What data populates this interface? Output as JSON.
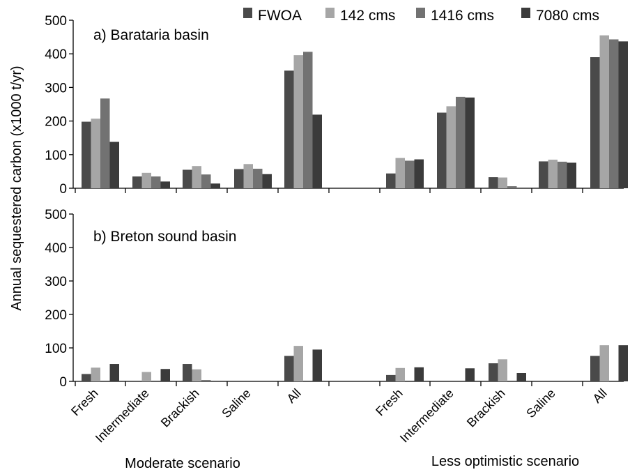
{
  "ylabel": "Annual sequestered carbon  (x1000 t/yr)",
  "groups": [
    "Moderate scenario",
    "Less optimistic scenario"
  ],
  "chart_data": {
    "type": "bar",
    "ylim": [
      0,
      500
    ],
    "yticks": [
      0,
      100,
      200,
      300,
      400,
      500
    ],
    "categories": [
      "Fresh",
      "Intermediate",
      "Brackish",
      "Saline",
      "All",
      "Fresh",
      "Intermediate",
      "Brackish",
      "Saline",
      "All"
    ],
    "legend": [
      {
        "name": "FWOA",
        "color": "#4a4a4a"
      },
      {
        "name": "142 cms",
        "color": "#a6a6a6"
      },
      {
        "name": "1416 cms",
        "color": "#727272"
      },
      {
        "name": "7080 cms",
        "color": "#3b3b3b"
      }
    ],
    "panels": [
      {
        "title": "a) Barataria basin",
        "series": [
          {
            "name": "FWOA",
            "values": [
              198,
              35,
              55,
              57,
              350,
              44,
              225,
              33,
              80,
              390
            ]
          },
          {
            "name": "142 cms",
            "values": [
              207,
              46,
              66,
              72,
              396,
              90,
              244,
              32,
              85,
              455
            ]
          },
          {
            "name": "1416 cms",
            "values": [
              267,
              35,
              41,
              58,
              406,
              82,
              272,
              6,
              79,
              443
            ]
          },
          {
            "name": "7080 cms",
            "values": [
              138,
              20,
              14,
              42,
              219,
              86,
              270,
              0,
              76,
              437
            ]
          }
        ]
      },
      {
        "title": "b) Breton sound basin",
        "series": [
          {
            "name": "FWOA",
            "values": [
              22,
              0,
              52,
              0,
              76,
              19,
              0,
              54,
              0,
              76
            ]
          },
          {
            "name": "142 cms",
            "values": [
              41,
              28,
              36,
              0,
              106,
              40,
              0,
              66,
              0,
              108
            ]
          },
          {
            "name": "1416 cms",
            "values": [
              0,
              0,
              4,
              0,
              0,
              0,
              0,
              0,
              0,
              0
            ]
          },
          {
            "name": "7080 cms",
            "values": [
              52,
              37,
              0,
              0,
              95,
              42,
              39,
              25,
              0,
              108
            ]
          }
        ]
      }
    ]
  }
}
